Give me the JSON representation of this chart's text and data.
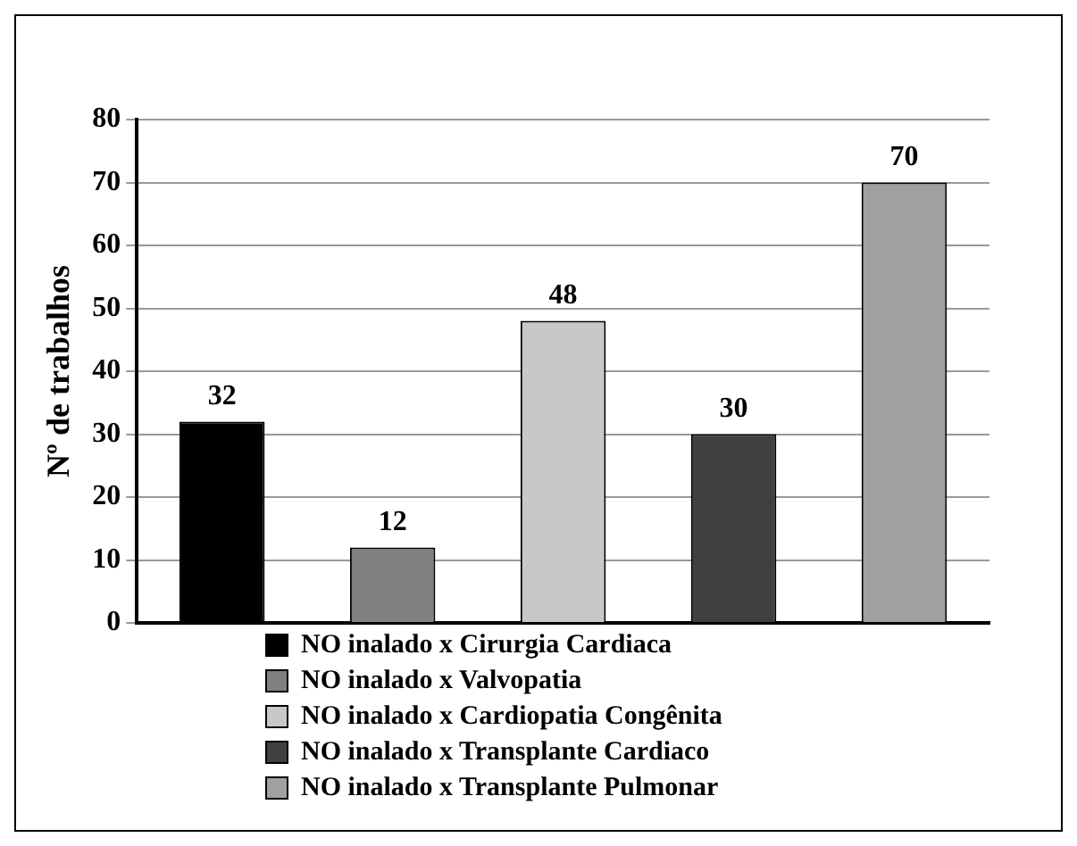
{
  "chart_data": {
    "type": "bar",
    "ylabel": "Nº de trabalhos",
    "categories": [
      null,
      null,
      null,
      null,
      null
    ],
    "series": [
      {
        "name": "NO inalado x Cirurgia Cardiaca",
        "color": "#000000",
        "values": [
          32,
          null,
          null,
          null,
          null
        ]
      },
      {
        "name": "NO inalado x Valvopatia",
        "color": "#808080",
        "values": [
          null,
          12,
          null,
          null,
          null
        ]
      },
      {
        "name": "NO inalado x Cardiopatia Congênita",
        "color": "#c8c8c8",
        "values": [
          null,
          null,
          48,
          null,
          null
        ]
      },
      {
        "name": "NO inalado x Transplante Cardiaco",
        "color": "#404040",
        "values": [
          null,
          null,
          null,
          30,
          null
        ]
      },
      {
        "name": "NO inalado x Transplante Pulmonar",
        "color": "#a0a0a0",
        "values": [
          null,
          null,
          null,
          null,
          70
        ]
      }
    ],
    "ylim": [
      0,
      80
    ],
    "yticks": [
      0,
      10,
      20,
      30,
      40,
      50,
      60,
      70,
      80
    ],
    "grid": "y",
    "legend": "bottom",
    "tick_labels": "y",
    "data_labels": true
  }
}
